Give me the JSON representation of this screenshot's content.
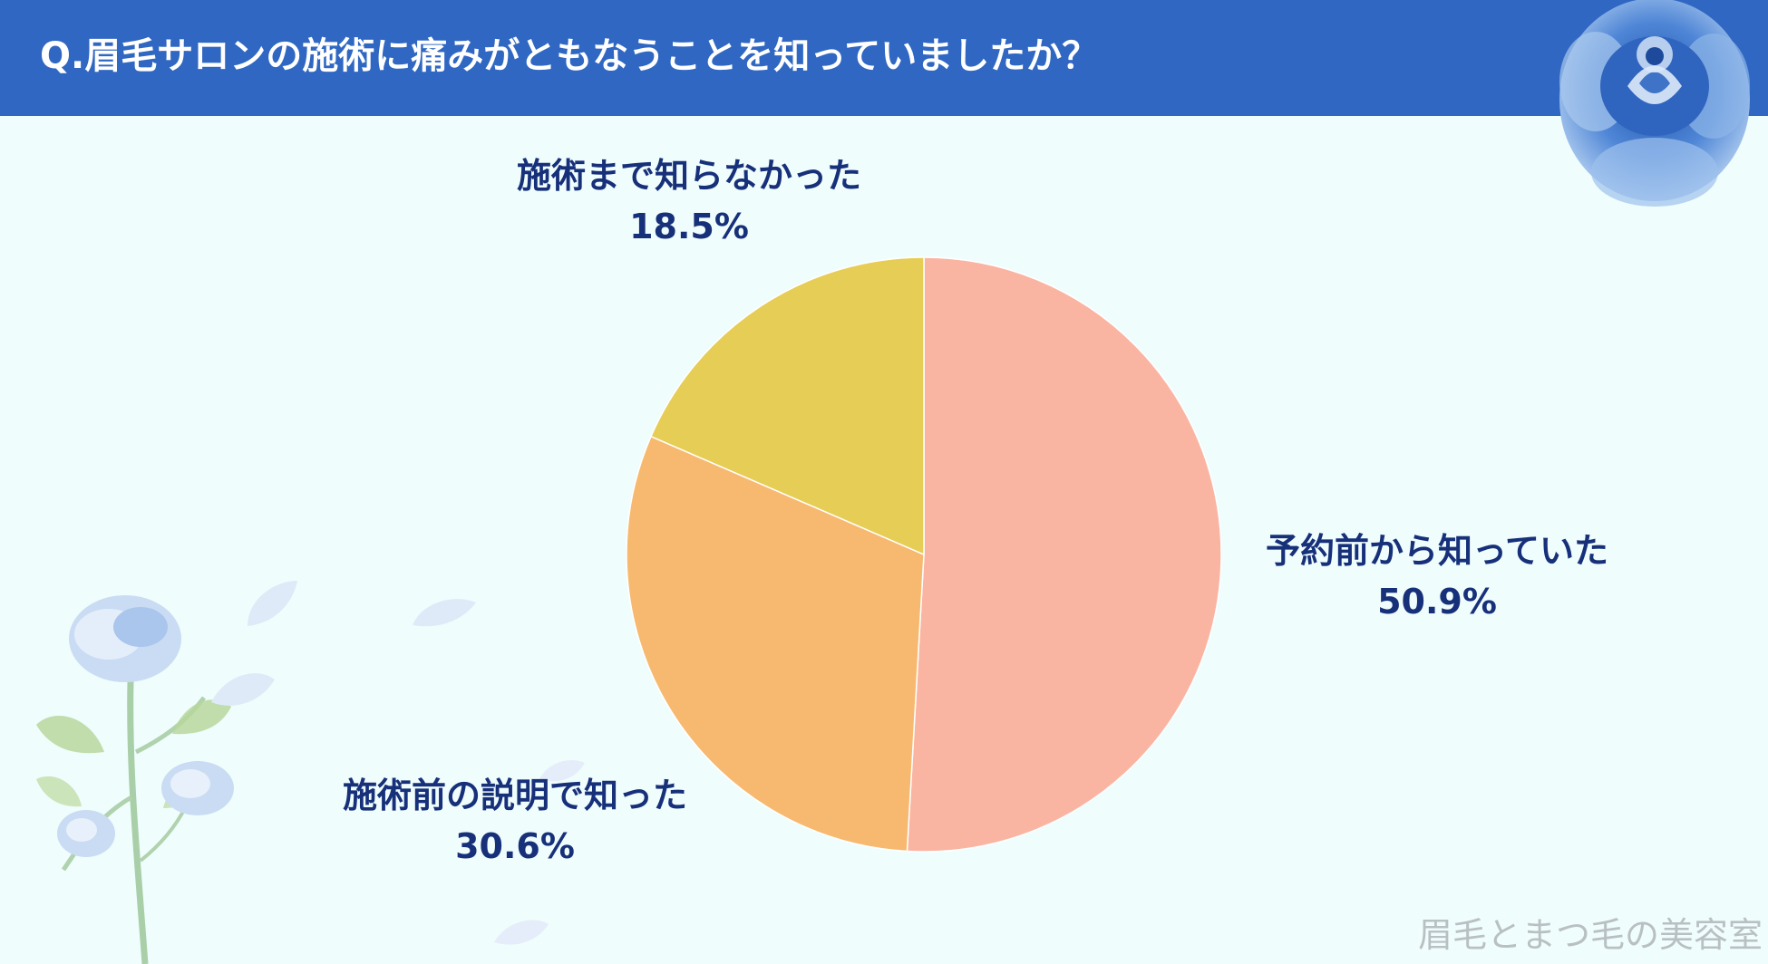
{
  "header": {
    "title": "Q.眉毛サロンの施術に痛みがともなうことを知っていましたか？"
  },
  "chart_data": {
    "type": "pie",
    "title": "Q.眉毛サロンの施術に痛みがともなうことを知っていましたか？",
    "slices": [
      {
        "label": "予約前から知っていた",
        "value": 50.9,
        "value_label": "50.9%",
        "color": "#f9b5a2"
      },
      {
        "label": "施術前の説明で知った",
        "value": 30.6,
        "value_label": "30.6%",
        "color": "#f6b96f"
      },
      {
        "label": "施術まで知らなかった",
        "value": 18.5,
        "value_label": "18.5%",
        "color": "#e6cd55"
      }
    ],
    "start_angle": "12 o'clock",
    "direction": "clockwise",
    "legend": "none"
  },
  "watermark": "眉毛とまつ毛の美容室",
  "colors": {
    "header_bg": "#2f67c2",
    "background": "#f0fdfd",
    "label_text": "#17307a",
    "slice_border": "#ffffff"
  },
  "icons": {
    "top_right": "blue-rose-icon",
    "bottom_left": "blue-rose-stem-icon"
  }
}
